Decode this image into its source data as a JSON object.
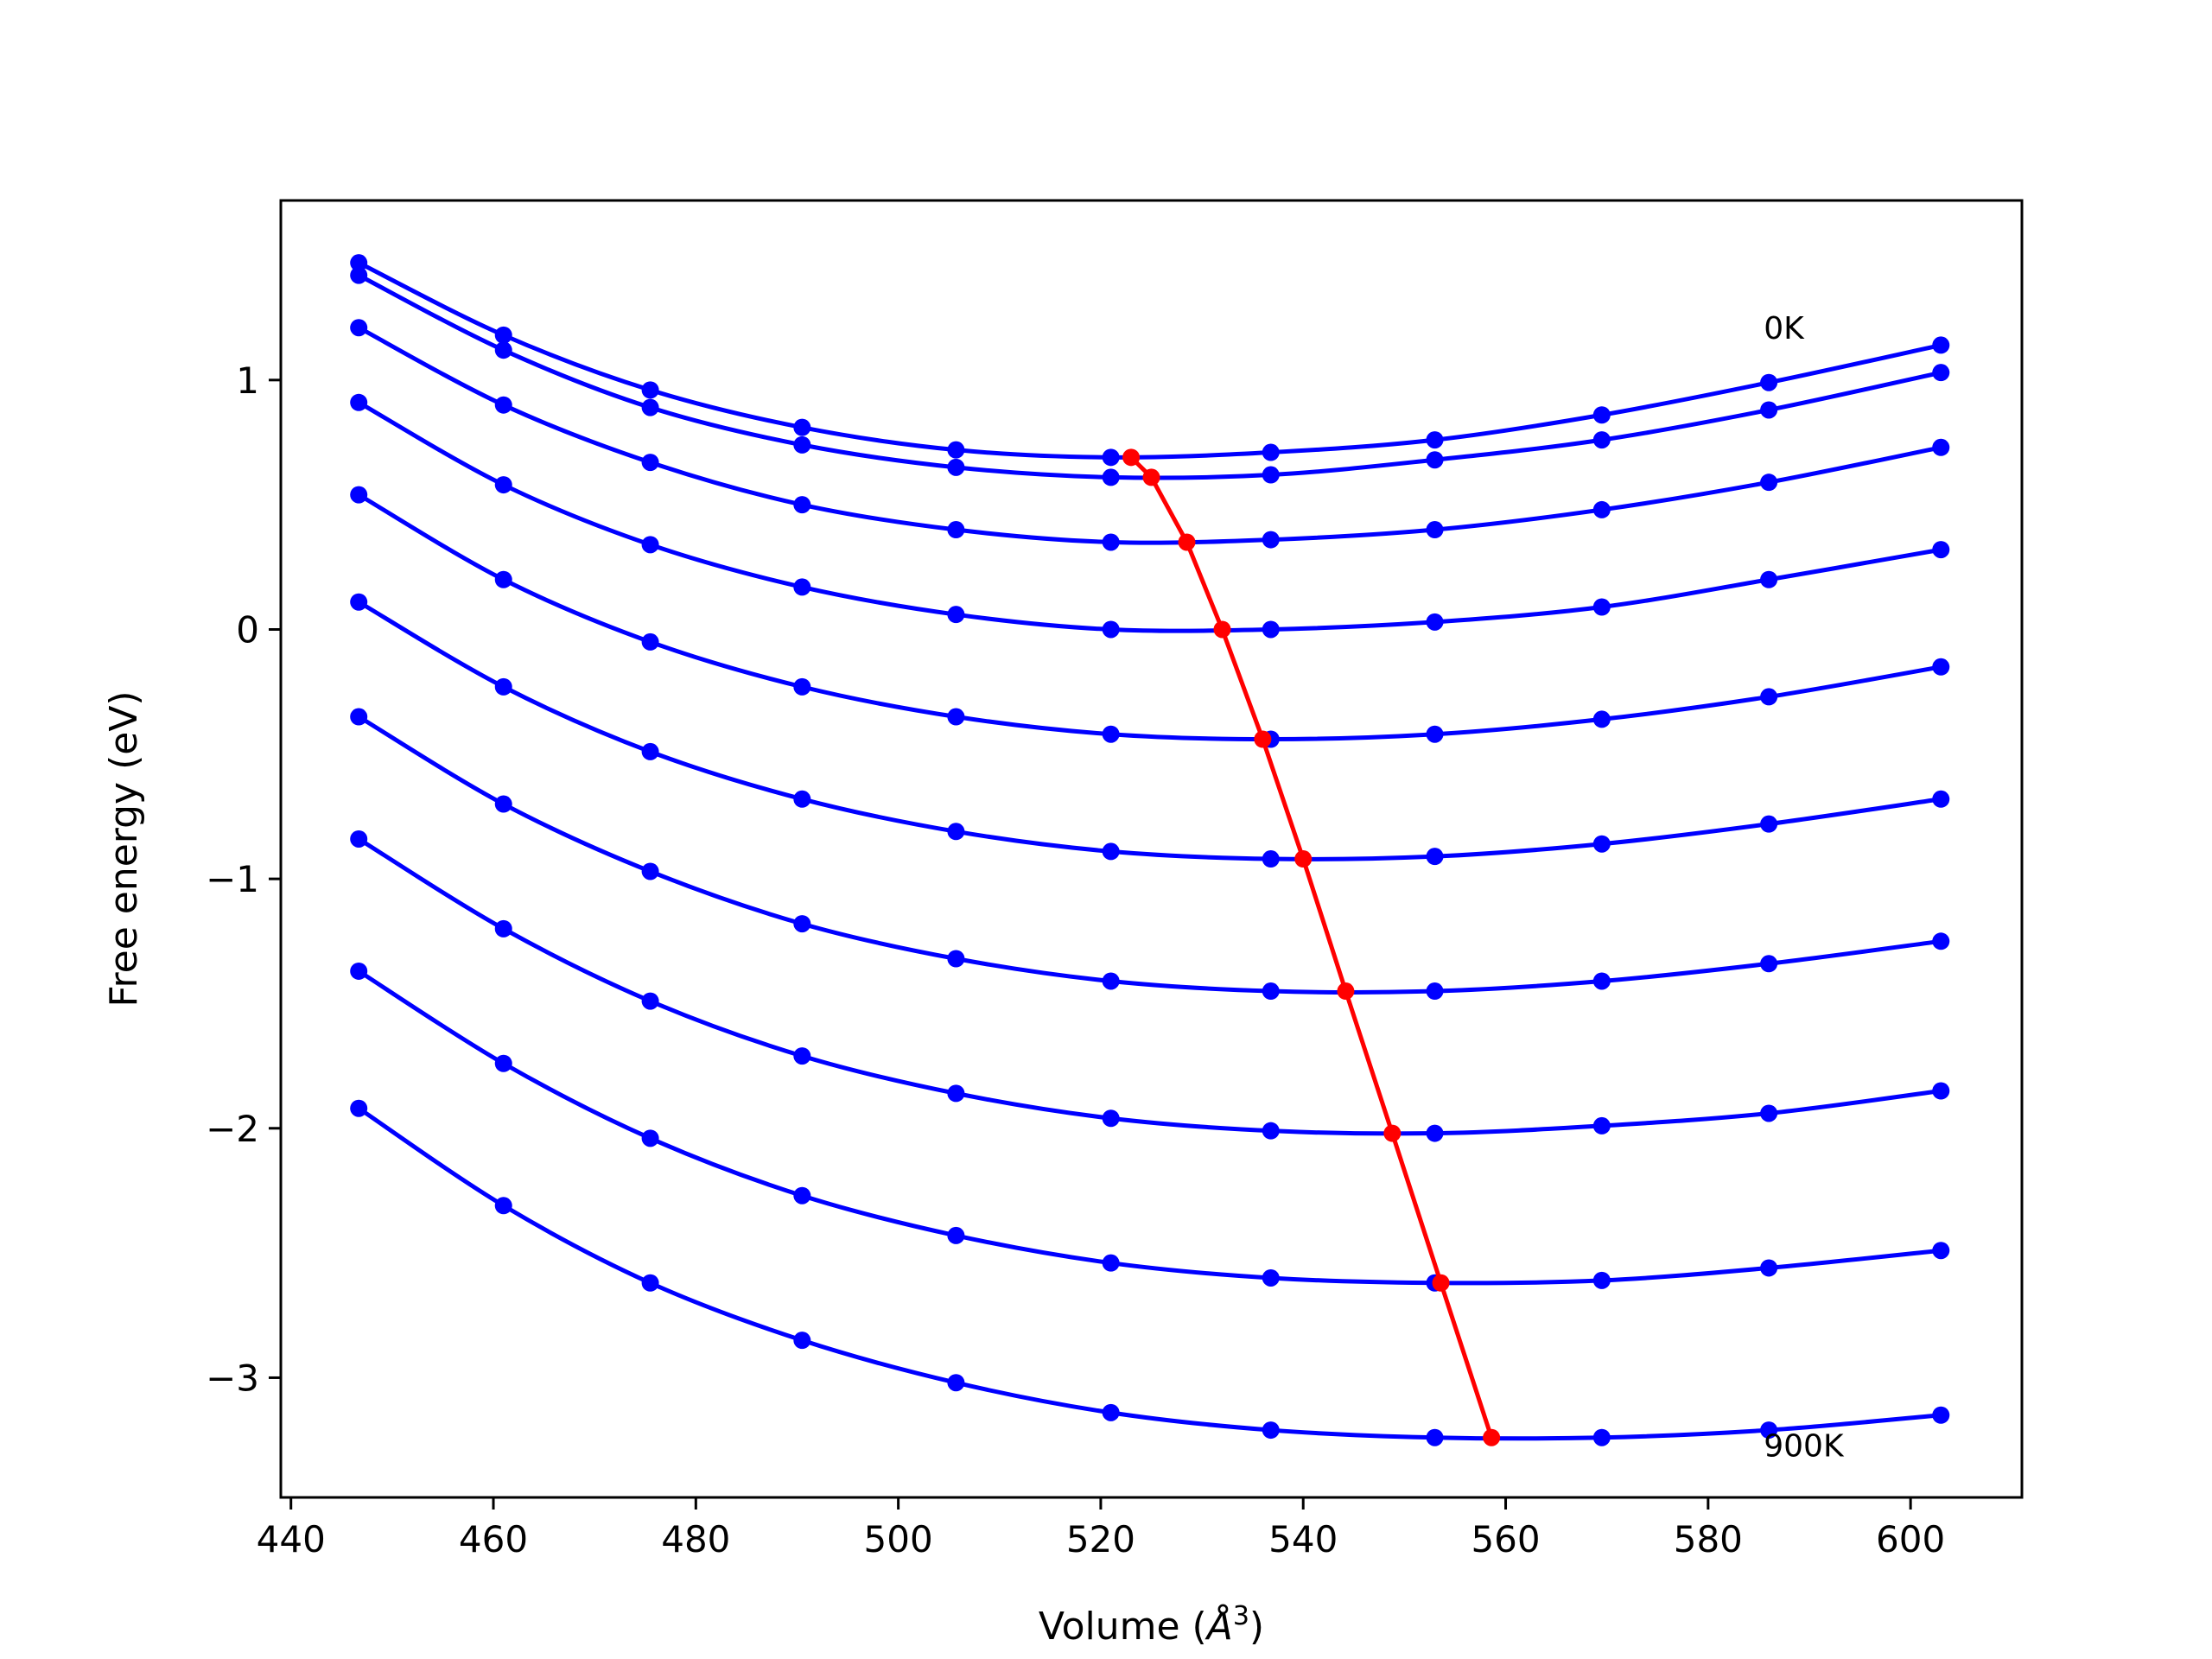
{
  "chart_data": {
    "type": "line",
    "title": "",
    "xlabel": "Volume (Å³)",
    "xlabel_main": "Volume (",
    "xlabel_sym": "Å",
    "xlabel_sup": "3",
    "xlabel_close": ")",
    "ylabel": "Free energy (eV)",
    "xlim": [
      439,
      611
    ],
    "ylim": [
      -3.48,
      1.72
    ],
    "xticks": [
      440,
      460,
      480,
      500,
      520,
      540,
      560,
      580,
      600
    ],
    "yticks": [
      -3,
      -2,
      -1,
      0,
      1
    ],
    "ytick_labels": [
      "−3",
      "−2",
      "−1",
      "0",
      "1"
    ],
    "grid": false,
    "colors": {
      "curves": "#0000ff",
      "minima": "#ff0000",
      "axes": "#000000"
    },
    "x": [
      446.7,
      461.0,
      475.5,
      490.5,
      505.7,
      521.0,
      536.8,
      553.0,
      569.5,
      586.0,
      603.0
    ],
    "series": [
      {
        "values": [
          1.47,
          1.18,
          0.96,
          0.81,
          0.72,
          0.69,
          0.71,
          0.76,
          0.86,
          0.99,
          1.14
        ]
      },
      {
        "values": [
          1.42,
          1.12,
          0.89,
          0.74,
          0.65,
          0.61,
          0.62,
          0.68,
          0.76,
          0.88,
          1.03
        ]
      },
      {
        "values": [
          1.21,
          0.9,
          0.67,
          0.5,
          0.4,
          0.35,
          0.36,
          0.4,
          0.48,
          0.59,
          0.73
        ]
      },
      {
        "values": [
          0.91,
          0.58,
          0.34,
          0.17,
          0.06,
          0.0,
          0.0,
          0.03,
          0.09,
          0.2,
          0.32
        ]
      },
      {
        "values": [
          0.54,
          0.2,
          -0.05,
          -0.23,
          -0.35,
          -0.42,
          -0.44,
          -0.42,
          -0.36,
          -0.27,
          -0.15
        ]
      },
      {
        "values": [
          0.11,
          -0.23,
          -0.49,
          -0.68,
          -0.81,
          -0.89,
          -0.92,
          -0.91,
          -0.86,
          -0.78,
          -0.68
        ]
      },
      {
        "values": [
          -0.35,
          -0.7,
          -0.97,
          -1.18,
          -1.32,
          -1.41,
          -1.45,
          -1.45,
          -1.41,
          -1.34,
          -1.25
        ]
      },
      {
        "values": [
          -0.84,
          -1.2,
          -1.49,
          -1.71,
          -1.86,
          -1.96,
          -2.01,
          -2.02,
          -1.99,
          -1.94,
          -1.85
        ]
      },
      {
        "values": [
          -1.37,
          -1.74,
          -2.04,
          -2.27,
          -2.43,
          -2.54,
          -2.6,
          -2.62,
          -2.61,
          -2.56,
          -2.49
        ]
      },
      {
        "values": [
          -1.92,
          -2.31,
          -2.62,
          -2.85,
          -3.02,
          -3.14,
          -3.21,
          -3.24,
          -3.24,
          -3.21,
          -3.15
        ]
      }
    ],
    "minima": {
      "x": [
        523.0,
        525.0,
        528.5,
        532.0,
        536.0,
        540.0,
        544.2,
        548.8,
        553.6,
        558.6
      ],
      "y": [
        0.69,
        0.61,
        0.35,
        0.0,
        -0.44,
        -0.92,
        -1.45,
        -2.02,
        -2.62,
        -3.24
      ]
    },
    "annotations": [
      {
        "text": "0K",
        "x": 585.5,
        "y": 1.21
      },
      {
        "text": "900K",
        "x": 585.5,
        "y": -3.27
      }
    ]
  }
}
